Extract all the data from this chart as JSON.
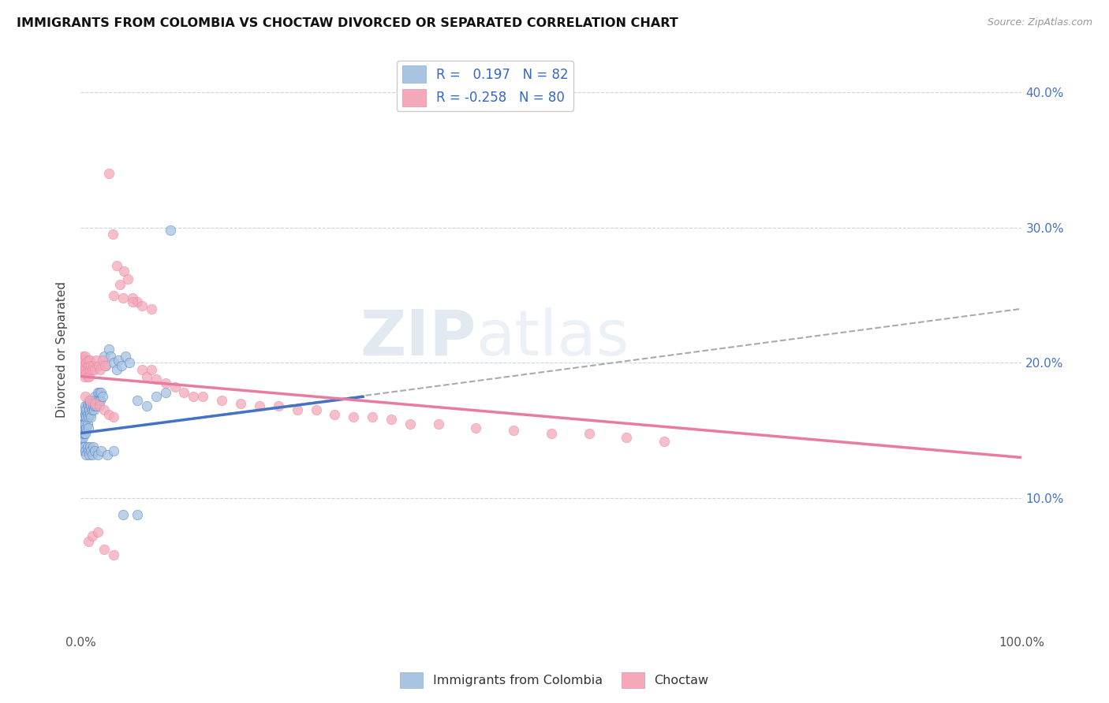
{
  "title": "IMMIGRANTS FROM COLOMBIA VS CHOCTAW DIVORCED OR SEPARATED CORRELATION CHART",
  "source": "Source: ZipAtlas.com",
  "ylabel": "Divorced or Separated",
  "right_yticks": [
    "10.0%",
    "20.0%",
    "30.0%",
    "40.0%"
  ],
  "right_ytick_vals": [
    0.1,
    0.2,
    0.3,
    0.4
  ],
  "xlim": [
    0.0,
    1.0
  ],
  "ylim": [
    0.0,
    0.42
  ],
  "color_blue": "#a8c4e0",
  "color_pink": "#f4a8b8",
  "trendline_blue": "#4472c4",
  "trendline_pink": "#e87ca0",
  "trendline_gray": "#aaaaaa",
  "blue_trend": [
    0.0,
    0.3,
    0.148,
    0.175
  ],
  "pink_trend": [
    0.0,
    1.0,
    0.19,
    0.13
  ],
  "gray_trend": [
    0.0,
    1.0,
    0.148,
    0.24
  ],
  "blue_scatter_x": [
    0.001,
    0.001,
    0.001,
    0.001,
    0.002,
    0.002,
    0.002,
    0.002,
    0.003,
    0.003,
    0.003,
    0.003,
    0.004,
    0.004,
    0.004,
    0.005,
    0.005,
    0.005,
    0.005,
    0.006,
    0.006,
    0.006,
    0.007,
    0.007,
    0.007,
    0.008,
    0.008,
    0.008,
    0.009,
    0.009,
    0.01,
    0.01,
    0.011,
    0.011,
    0.012,
    0.012,
    0.013,
    0.014,
    0.015,
    0.015,
    0.016,
    0.017,
    0.018,
    0.019,
    0.02,
    0.021,
    0.022,
    0.023,
    0.025,
    0.027,
    0.03,
    0.032,
    0.035,
    0.038,
    0.04,
    0.043,
    0.048,
    0.052,
    0.06,
    0.07,
    0.08,
    0.09,
    0.095,
    0.002,
    0.003,
    0.004,
    0.005,
    0.006,
    0.007,
    0.008,
    0.009,
    0.01,
    0.011,
    0.012,
    0.013,
    0.015,
    0.018,
    0.022,
    0.028,
    0.035,
    0.045,
    0.06
  ],
  "blue_scatter_y": [
    0.155,
    0.15,
    0.145,
    0.14,
    0.162,
    0.155,
    0.15,
    0.145,
    0.165,
    0.16,
    0.155,
    0.148,
    0.16,
    0.155,
    0.148,
    0.168,
    0.162,
    0.155,
    0.148,
    0.165,
    0.16,
    0.152,
    0.17,
    0.162,
    0.155,
    0.168,
    0.16,
    0.152,
    0.172,
    0.165,
    0.17,
    0.162,
    0.168,
    0.16,
    0.172,
    0.165,
    0.168,
    0.165,
    0.175,
    0.168,
    0.172,
    0.168,
    0.178,
    0.172,
    0.178,
    0.172,
    0.178,
    0.175,
    0.205,
    0.198,
    0.21,
    0.205,
    0.2,
    0.195,
    0.202,
    0.198,
    0.205,
    0.2,
    0.172,
    0.168,
    0.175,
    0.178,
    0.298,
    0.138,
    0.135,
    0.138,
    0.135,
    0.132,
    0.138,
    0.135,
    0.132,
    0.138,
    0.135,
    0.132,
    0.138,
    0.135,
    0.132,
    0.135,
    0.132,
    0.135,
    0.088,
    0.088
  ],
  "pink_scatter_x": [
    0.001,
    0.002,
    0.002,
    0.003,
    0.003,
    0.004,
    0.004,
    0.005,
    0.005,
    0.006,
    0.006,
    0.007,
    0.007,
    0.008,
    0.008,
    0.009,
    0.009,
    0.01,
    0.01,
    0.011,
    0.012,
    0.013,
    0.015,
    0.017,
    0.019,
    0.021,
    0.023,
    0.026,
    0.03,
    0.034,
    0.038,
    0.042,
    0.046,
    0.05,
    0.055,
    0.06,
    0.065,
    0.07,
    0.075,
    0.08,
    0.09,
    0.1,
    0.11,
    0.12,
    0.13,
    0.15,
    0.17,
    0.19,
    0.21,
    0.23,
    0.25,
    0.27,
    0.29,
    0.31,
    0.33,
    0.35,
    0.38,
    0.42,
    0.46,
    0.5,
    0.54,
    0.58,
    0.62,
    0.035,
    0.045,
    0.055,
    0.065,
    0.075,
    0.005,
    0.01,
    0.015,
    0.02,
    0.025,
    0.03,
    0.035,
    0.008,
    0.012,
    0.018,
    0.025,
    0.035
  ],
  "pink_scatter_y": [
    0.198,
    0.205,
    0.195,
    0.202,
    0.195,
    0.198,
    0.19,
    0.205,
    0.195,
    0.2,
    0.192,
    0.198,
    0.19,
    0.202,
    0.195,
    0.198,
    0.19,
    0.202,
    0.195,
    0.198,
    0.195,
    0.198,
    0.195,
    0.202,
    0.198,
    0.195,
    0.202,
    0.198,
    0.34,
    0.295,
    0.272,
    0.258,
    0.268,
    0.262,
    0.248,
    0.245,
    0.195,
    0.19,
    0.195,
    0.188,
    0.185,
    0.182,
    0.178,
    0.175,
    0.175,
    0.172,
    0.17,
    0.168,
    0.168,
    0.165,
    0.165,
    0.162,
    0.16,
    0.16,
    0.158,
    0.155,
    0.155,
    0.152,
    0.15,
    0.148,
    0.148,
    0.145,
    0.142,
    0.25,
    0.248,
    0.245,
    0.242,
    0.24,
    0.175,
    0.172,
    0.17,
    0.168,
    0.165,
    0.162,
    0.16,
    0.068,
    0.072,
    0.075,
    0.062,
    0.058
  ]
}
